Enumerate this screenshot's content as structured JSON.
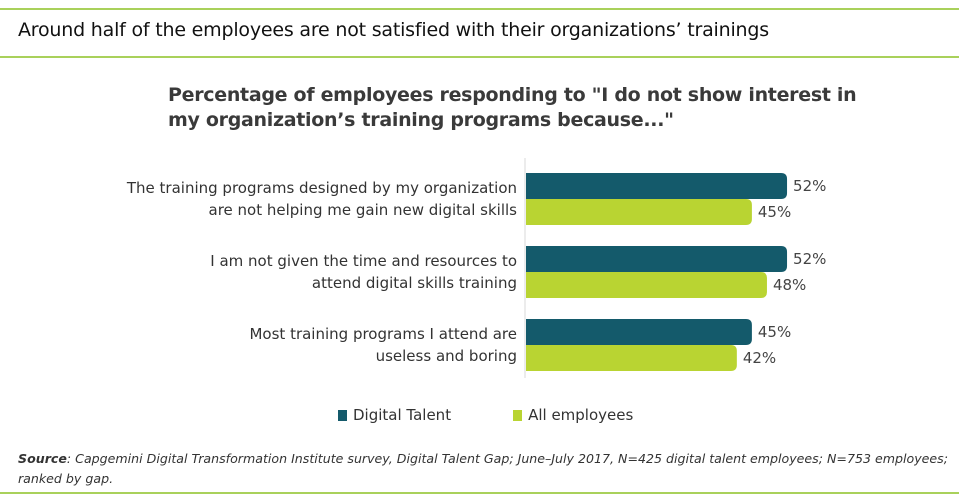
{
  "headline": "Around half of the employees are not satisfied with their organizations’ trainings",
  "chart_data": {
    "type": "bar",
    "orientation": "horizontal",
    "title": "Percentage of employees responding to \"I do not show interest in my organization’s training programs because...\"",
    "categories": [
      [
        "The training  programs designed by my organization",
        "are not helping me gain new digital skills"
      ],
      [
        "I am not given the time and resources to",
        "attend digital skills training"
      ],
      [
        "Most training  programs I attend are",
        "useless and boring"
      ]
    ],
    "series": [
      {
        "name": "Digital Talent",
        "color": "#145a6b",
        "values": [
          52,
          52,
          45
        ]
      },
      {
        "name": "All employees",
        "color": "#b9d432",
        "values": [
          45,
          48,
          42
        ]
      }
    ],
    "value_suffix": "%",
    "xlim": [
      0,
      100
    ],
    "grid": false,
    "legend": "bottom-center"
  },
  "legend": {
    "items": [
      {
        "label": "Digital Talent",
        "color": "#145a6b"
      },
      {
        "label": "All employees",
        "color": "#b9d432"
      }
    ]
  },
  "source": {
    "label": "Source",
    "text": ": Capgemini Digital Transformation Institute survey, Digital Talent Gap; June–July 2017, N=425 digital talent employees; N=753 employees; ranked by gap."
  },
  "colors": {
    "rule": "#a9d15b"
  }
}
